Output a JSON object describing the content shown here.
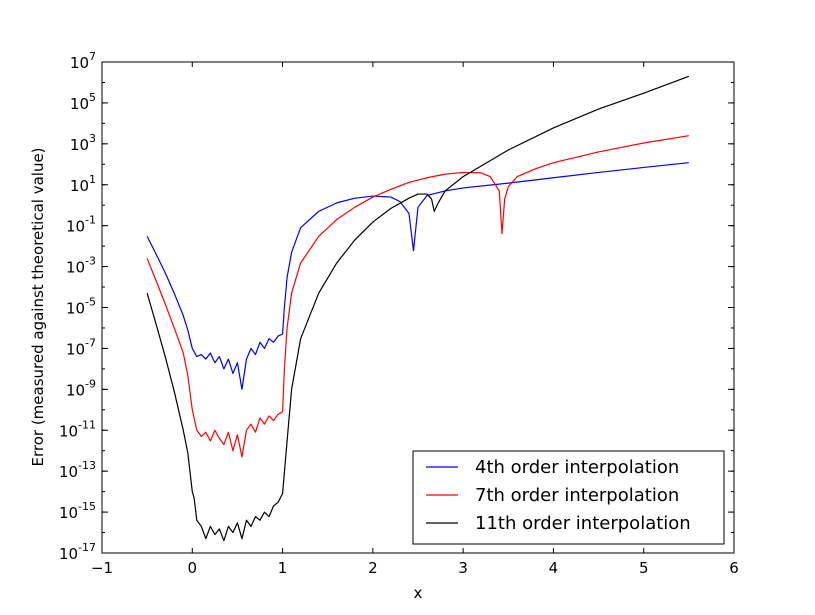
{
  "chart_data": {
    "type": "line",
    "title": "",
    "xlabel": "x",
    "ylabel": "Error (measured against theoretical value)",
    "xlim": [
      -1,
      6
    ],
    "ylim": [
      1e-17,
      10000000.0
    ],
    "yscale": "log",
    "grid": false,
    "legend_position": "lower-right",
    "x_ticks": [
      -1,
      0,
      1,
      2,
      3,
      4,
      5,
      6
    ],
    "y_tick_exponents": [
      -17,
      -15,
      -13,
      -11,
      -9,
      -7,
      -5,
      -3,
      -1,
      1,
      3,
      5,
      7
    ],
    "series": [
      {
        "name": "4th order interpolation",
        "color": "#0000ff",
        "x": [
          -0.5,
          -0.4,
          -0.3,
          -0.2,
          -0.1,
          -0.05,
          0.0,
          0.05,
          0.1,
          0.15,
          0.2,
          0.25,
          0.3,
          0.35,
          0.4,
          0.45,
          0.5,
          0.55,
          0.6,
          0.65,
          0.7,
          0.75,
          0.8,
          0.85,
          0.9,
          0.95,
          1.0,
          1.02,
          1.05,
          1.1,
          1.2,
          1.4,
          1.6,
          1.8,
          2.0,
          2.2,
          2.3,
          2.4,
          2.45,
          2.5,
          2.6,
          2.8,
          3.0,
          3.5,
          4.0,
          4.5,
          5.0,
          5.5
        ],
        "y": [
          0.03,
          0.004,
          0.0005,
          5e-05,
          4e-06,
          8e-07,
          1e-07,
          4e-08,
          5e-08,
          3e-08,
          6e-08,
          2e-08,
          4e-08,
          1e-08,
          3e-08,
          6e-09,
          2e-08,
          1e-09,
          3e-08,
          1e-07,
          5e-08,
          2e-07,
          1e-07,
          3e-07,
          2e-07,
          4e-07,
          5e-07,
          1e-05,
          0.0003,
          0.005,
          0.08,
          0.5,
          1.3,
          2.2,
          2.8,
          2.5,
          1.5,
          0.4,
          0.006,
          0.8,
          3,
          5,
          7,
          12,
          22,
          40,
          70,
          120
        ]
      },
      {
        "name": "7th order interpolation",
        "color": "#ff0000",
        "x": [
          -0.5,
          -0.4,
          -0.3,
          -0.2,
          -0.1,
          -0.05,
          0.0,
          0.05,
          0.1,
          0.15,
          0.2,
          0.25,
          0.3,
          0.35,
          0.4,
          0.45,
          0.5,
          0.55,
          0.6,
          0.65,
          0.7,
          0.75,
          0.8,
          0.85,
          0.9,
          0.95,
          1.0,
          1.02,
          1.05,
          1.1,
          1.2,
          1.4,
          1.6,
          1.8,
          2.0,
          2.2,
          2.4,
          2.6,
          2.8,
          3.0,
          3.2,
          3.3,
          3.4,
          3.43,
          3.46,
          3.5,
          3.6,
          3.8,
          4.0,
          4.5,
          5.0,
          5.5
        ],
        "y": [
          0.0025,
          0.0002,
          1.5e-05,
          1e-06,
          6e-08,
          5e-09,
          1e-10,
          1e-11,
          5e-12,
          8e-12,
          3e-12,
          1e-11,
          4e-12,
          2e-12,
          8e-12,
          1e-12,
          6e-12,
          5e-13,
          1e-11,
          2e-11,
          8e-12,
          4e-11,
          2e-11,
          5e-11,
          3e-11,
          6e-11,
          8e-11,
          1e-08,
          1e-06,
          5e-05,
          0.0015,
          0.03,
          0.2,
          0.8,
          2.5,
          6,
          13,
          22,
          33,
          40,
          38,
          25,
          5,
          0.04,
          2,
          8,
          25,
          60,
          120,
          400,
          1100,
          2500
        ]
      },
      {
        "name": "11th order interpolation",
        "color": "#000000",
        "x": [
          -0.5,
          -0.4,
          -0.3,
          -0.2,
          -0.1,
          -0.05,
          0.0,
          0.02,
          0.05,
          0.1,
          0.15,
          0.2,
          0.25,
          0.3,
          0.35,
          0.4,
          0.45,
          0.5,
          0.55,
          0.6,
          0.65,
          0.7,
          0.75,
          0.8,
          0.85,
          0.9,
          0.95,
          1.0,
          1.05,
          1.1,
          1.2,
          1.4,
          1.6,
          1.8,
          2.0,
          2.2,
          2.4,
          2.5,
          2.6,
          2.65,
          2.68,
          2.72,
          2.8,
          3.0,
          3.5,
          4.0,
          4.5,
          5.0,
          5.5
        ],
        "y": [
          5e-05,
          1.5e-06,
          4e-08,
          8e-10,
          1e-11,
          8e-13,
          1e-14,
          5e-15,
          4e-16,
          2e-16,
          5e-17,
          2e-16,
          8e-17,
          1.5e-16,
          4e-17,
          2e-16,
          1e-16,
          3e-16,
          5e-17,
          4e-16,
          2e-16,
          6e-16,
          4e-16,
          1e-15,
          6e-16,
          2e-15,
          3e-15,
          8e-15,
          3e-12,
          1e-09,
          3e-07,
          5e-05,
          0.0015,
          0.02,
          0.15,
          0.7,
          2.2,
          3.5,
          3.5,
          2,
          0.5,
          1.2,
          5,
          25,
          500,
          6000,
          50000,
          300000,
          2000000
        ]
      }
    ]
  }
}
